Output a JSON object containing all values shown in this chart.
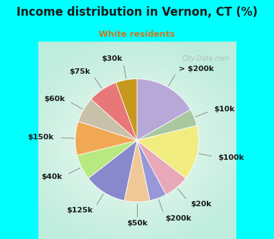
{
  "title": "Income distribution in Vernon, CT (%)",
  "subtitle": "White residents",
  "title_color": "#1a1a1a",
  "subtitle_color": "#cc7722",
  "background_cyan": "#00ffff",
  "watermark": "City-Data.com",
  "labels": [
    "> $200k",
    "$10k",
    "$100k",
    "$20k",
    "$200k",
    "$50k",
    "$125k",
    "$40k",
    "$150k",
    "$60k",
    "$75k",
    "$30k"
  ],
  "values": [
    15,
    4,
    13,
    6,
    4,
    6,
    10,
    6,
    8,
    6,
    7,
    5
  ],
  "colors": [
    "#b8a8d8",
    "#aac8a0",
    "#f0ec80",
    "#e8a8b8",
    "#9898d8",
    "#f0c898",
    "#8888cc",
    "#b8e880",
    "#f0a855",
    "#c8c0a8",
    "#e87878",
    "#c8981e"
  ],
  "label_fontsize": 8,
  "figsize": [
    4.0,
    3.5
  ],
  "dpi": 100
}
